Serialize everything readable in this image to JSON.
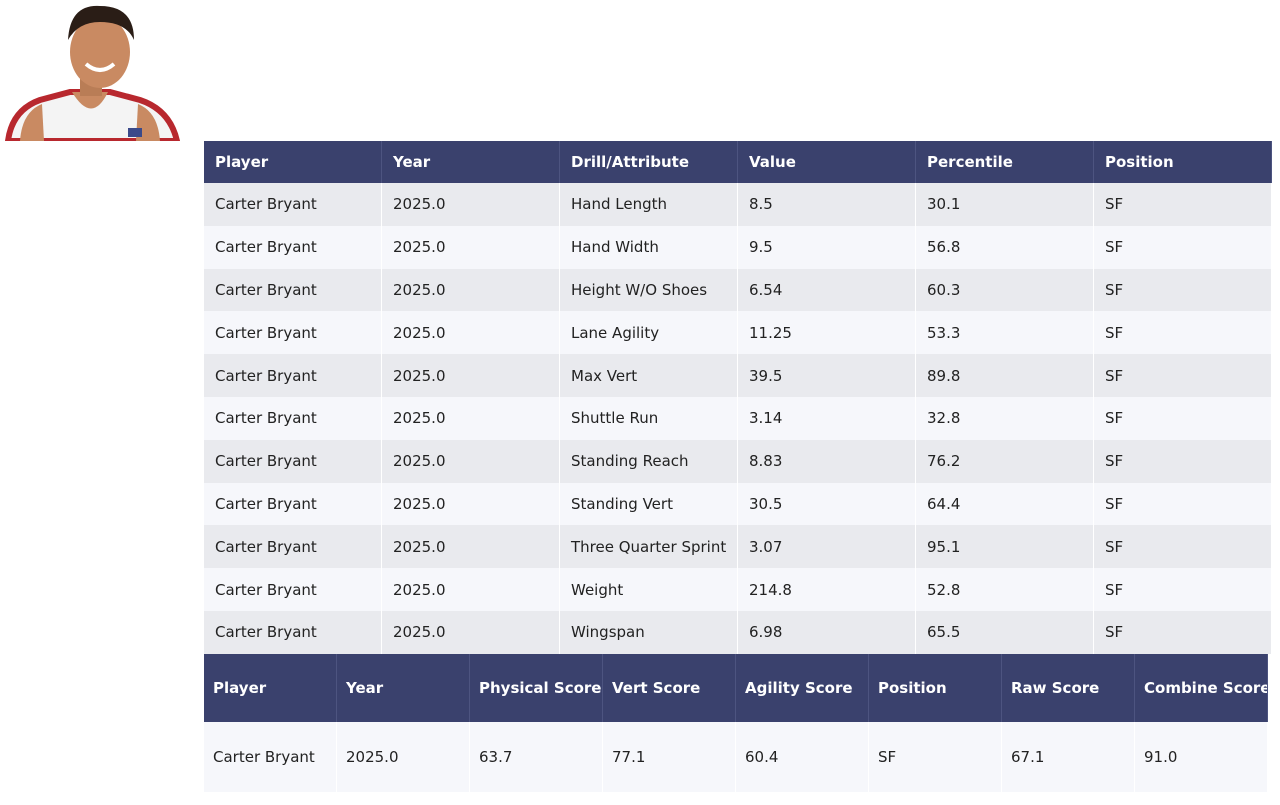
{
  "table1": {
    "header": [
      "Player",
      "Year",
      "Drill/Attribute",
      "Value",
      "Percentile",
      "Position"
    ],
    "rows": [
      [
        "Carter Bryant",
        "2025.0",
        "Hand Length",
        "8.5",
        "30.1",
        "SF"
      ],
      [
        "Carter Bryant",
        "2025.0",
        "Hand Width",
        "9.5",
        "56.8",
        "SF"
      ],
      [
        "Carter Bryant",
        "2025.0",
        "Height W/O Shoes",
        "6.54",
        "60.3",
        "SF"
      ],
      [
        "Carter Bryant",
        "2025.0",
        "Lane Agility",
        "11.25",
        "53.3",
        "SF"
      ],
      [
        "Carter Bryant",
        "2025.0",
        "Max Vert",
        "39.5",
        "89.8",
        "SF"
      ],
      [
        "Carter Bryant",
        "2025.0",
        "Shuttle Run",
        "3.14",
        "32.8",
        "SF"
      ],
      [
        "Carter Bryant",
        "2025.0",
        "Standing Reach",
        "8.83",
        "76.2",
        "SF"
      ],
      [
        "Carter Bryant",
        "2025.0",
        "Standing Vert",
        "30.5",
        "64.4",
        "SF"
      ],
      [
        "Carter Bryant",
        "2025.0",
        "Three Quarter Sprint",
        "3.07",
        "95.1",
        "SF"
      ],
      [
        "Carter Bryant",
        "2025.0",
        "Weight",
        "214.8",
        "52.8",
        "SF"
      ],
      [
        "Carter Bryant",
        "2025.0",
        "Wingspan",
        "6.98",
        "65.5",
        "SF"
      ]
    ]
  },
  "table2": {
    "header": [
      "Player",
      "Year",
      "Physical Score",
      "Vert Score",
      "Agility Score",
      "Position",
      "Raw Score",
      "Combine Score"
    ],
    "rows": [
      [
        "Carter Bryant",
        "2025.0",
        "63.7",
        "77.1",
        "60.4",
        "SF",
        "67.1",
        "91.0"
      ]
    ]
  }
}
